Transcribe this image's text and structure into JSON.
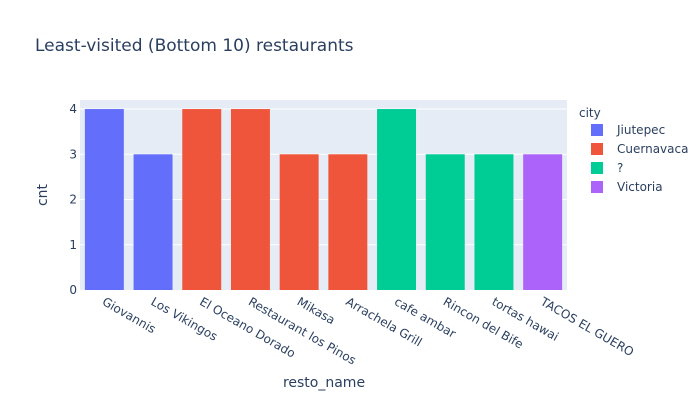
{
  "chart_data": {
    "type": "bar",
    "title": "Least-visited (Bottom 10) restaurants",
    "xlabel": "resto_name",
    "ylabel": "cnt",
    "ylim": [
      0,
      4.2
    ],
    "yticks": [
      0,
      1,
      2,
      3,
      4
    ],
    "grid": true,
    "legend_title": "city",
    "legend_placement": "right",
    "series": [
      {
        "name": "Jiutepec",
        "color": "#636efa"
      },
      {
        "name": "Cuernavaca",
        "color": "#ef553b"
      },
      {
        "name": "?",
        "color": "#00cc96"
      },
      {
        "name": "Victoria",
        "color": "#ab63fa"
      }
    ],
    "categories": [
      "Giovannis",
      "Los Vikingos",
      "El Oceano Dorado",
      "Restaurant los Pinos",
      "Mikasa",
      "Arrachela Grill",
      "cafe ambar",
      "Rincon del Bife",
      "tortas hawai",
      "TACOS EL GUERO"
    ],
    "values": [
      4,
      3,
      4,
      4,
      3,
      3,
      4,
      3,
      3,
      3
    ],
    "city": [
      "Jiutepec",
      "Jiutepec",
      "Cuernavaca",
      "Cuernavaca",
      "Cuernavaca",
      "Cuernavaca",
      "?",
      "?",
      "?",
      "Victoria"
    ]
  }
}
